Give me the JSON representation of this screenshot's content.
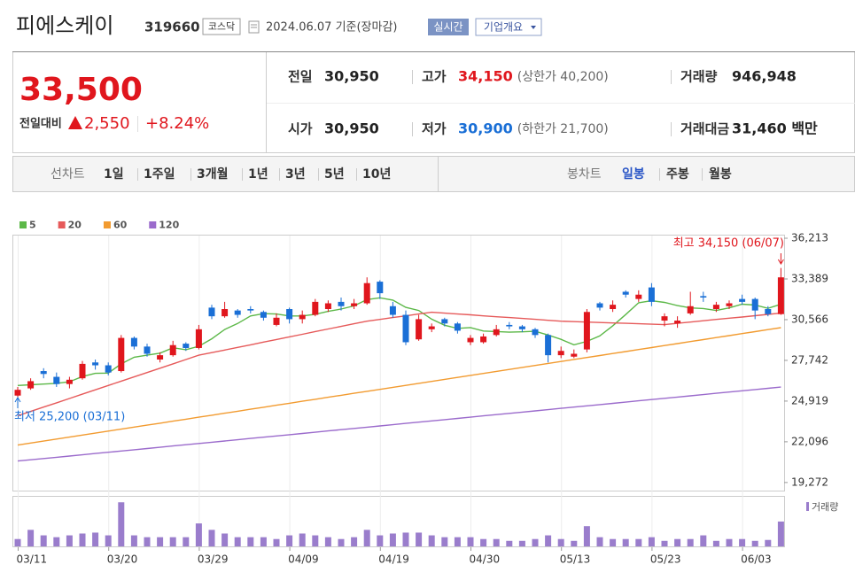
{
  "header": {
    "title": "피에스케이",
    "code": "319660",
    "market": "코스닥",
    "date": "2024.06.07 기준(장마감)",
    "realtime": "실시간",
    "overview": "기업개요"
  },
  "summary": {
    "price": "33,500",
    "change_label": "전일대비",
    "change": "2,550",
    "rate": "+8.24%",
    "stats": [
      {
        "label": "전일",
        "value": "30,950"
      },
      {
        "label": "고가",
        "value": "34,150",
        "extra": "(상한가 40,200)"
      },
      {
        "label": "거래량",
        "value": "946,948"
      },
      {
        "label": "시가",
        "value": "30,950"
      },
      {
        "label": "저가",
        "value": "30,900",
        "extra": "(하한가 21,700)"
      },
      {
        "label": "거래대금",
        "value": "31,460 백만"
      }
    ]
  },
  "periods": {
    "line_label": "선차트",
    "line_options": [
      "1일",
      "1주일",
      "3개월",
      "1년",
      "3년",
      "5년",
      "10년"
    ],
    "candle_label": "봉차트",
    "candle_options": [
      "일봉",
      "주봉",
      "월봉"
    ]
  },
  "chart_data": {
    "type": "candlestick",
    "categories": [
      "03/11",
      null,
      null,
      null,
      null,
      null,
      null,
      "03/20",
      null,
      null,
      null,
      null,
      null,
      null,
      "03/29",
      null,
      null,
      null,
      null,
      null,
      null,
      "04/09",
      null,
      null,
      null,
      null,
      null,
      null,
      "04/19",
      null,
      null,
      null,
      null,
      null,
      null,
      "04/30",
      null,
      null,
      null,
      null,
      null,
      null,
      "05/13",
      null,
      null,
      null,
      null,
      null,
      null,
      "05/23",
      null,
      null,
      null,
      null,
      null,
      null,
      "06/03",
      null,
      null,
      null
    ],
    "open": [
      25300,
      25800,
      27000,
      26600,
      26100,
      26500,
      27600,
      27400,
      27000,
      29300,
      28700,
      27800,
      28100,
      28900,
      28600,
      31400,
      30800,
      31200,
      31300,
      31100,
      30200,
      31300,
      30600,
      30900,
      31300,
      31800,
      31500,
      31700,
      33200,
      31500,
      30900,
      29200,
      29900,
      30600,
      30300,
      29000,
      29000,
      29500,
      30200,
      30100,
      29900,
      29500,
      28100,
      28000,
      28500,
      31700,
      31300,
      32500,
      32000,
      32800,
      30500,
      30300,
      31000,
      32200,
      31300,
      31500,
      32000,
      32000,
      31300,
      30950
    ],
    "high": [
      25900,
      26500,
      27200,
      26900,
      26600,
      27700,
      27800,
      27600,
      29500,
      29400,
      28900,
      28300,
      29100,
      29000,
      30200,
      31600,
      31800,
      31300,
      31500,
      31200,
      31000,
      31400,
      31200,
      32000,
      31900,
      32100,
      32000,
      33500,
      33300,
      31800,
      31200,
      30900,
      30300,
      30700,
      30400,
      29500,
      29600,
      30200,
      30400,
      30200,
      30000,
      29600,
      28700,
      28500,
      31300,
      31800,
      31900,
      32600,
      32600,
      33100,
      31000,
      30800,
      32500,
      32500,
      31800,
      31900,
      32300,
      32100,
      31500,
      34150
    ],
    "low": [
      25200,
      25700,
      26500,
      25900,
      25800,
      26400,
      27100,
      26700,
      26900,
      28500,
      28000,
      27600,
      28000,
      28400,
      28500,
      30600,
      30700,
      30700,
      31000,
      30500,
      30100,
      30300,
      30300,
      30800,
      31100,
      31200,
      31300,
      31600,
      32000,
      30700,
      28800,
      29100,
      29700,
      30100,
      29600,
      28800,
      28900,
      29400,
      29900,
      29700,
      29300,
      27600,
      27900,
      27900,
      28300,
      31200,
      31100,
      32100,
      31800,
      31500,
      30100,
      30000,
      30900,
      31800,
      31100,
      31300,
      31600,
      30600,
      30800,
      30900
    ],
    "close": [
      25700,
      26300,
      26800,
      26100,
      26400,
      27500,
      27400,
      26900,
      29300,
      28700,
      28200,
      28100,
      28800,
      28600,
      29900,
      30800,
      31300,
      30900,
      31200,
      30700,
      30700,
      30600,
      30900,
      31800,
      31700,
      31500,
      31700,
      33100,
      32400,
      30900,
      29000,
      30600,
      30100,
      30300,
      29800,
      29300,
      29400,
      29900,
      30100,
      29900,
      29500,
      28100,
      28400,
      28200,
      31100,
      31400,
      31600,
      32300,
      32300,
      31800,
      30800,
      30500,
      31500,
      32100,
      31600,
      31700,
      31800,
      31200,
      30950,
      33500
    ],
    "up_color": "#e0161d",
    "down_color": "#1a6fd6",
    "series": [
      {
        "name": "5",
        "color": "#5cb848",
        "values": [
          26000,
          26050,
          26100,
          26150,
          26260,
          26620,
          26840,
          26860,
          27500,
          27960,
          28100,
          28240,
          28620,
          28480,
          28720,
          29240,
          29880,
          30300,
          30820,
          30980,
          30960,
          30820,
          30820,
          30940,
          31140,
          31300,
          31520,
          31960,
          32080,
          31920,
          31420,
          31200,
          30600,
          30180,
          29960,
          30020,
          29780,
          29740,
          29700,
          29720,
          29760,
          29500,
          29200,
          28820,
          29060,
          29440,
          30140,
          30920,
          31740,
          31880,
          31760,
          31540,
          31380,
          31340,
          31200,
          31380,
          31640,
          31580,
          31350,
          31630
        ]
      },
      {
        "name": "20",
        "color": "#e65a5a",
        "values": [
          23900,
          24200,
          24500,
          24800,
          25100,
          25400,
          25700,
          26000,
          26300,
          26600,
          26900,
          27200,
          27500,
          27800,
          28100,
          28280,
          28460,
          28640,
          28820,
          29010,
          29190,
          29370,
          29550,
          29740,
          29920,
          30100,
          30280,
          30460,
          30580,
          30710,
          30830,
          30960,
          31080,
          31020,
          30960,
          30900,
          30830,
          30770,
          30710,
          30650,
          30590,
          30520,
          30460,
          30430,
          30400,
          30370,
          30340,
          30310,
          30280,
          30250,
          30220,
          30310,
          30400,
          30490,
          30580,
          30670,
          30750,
          30840,
          30930,
          31020
        ]
      },
      {
        "name": "60",
        "color": "#f29b30",
        "values": [
          21870,
          22008,
          22146,
          22284,
          22422,
          22560,
          22698,
          22836,
          22974,
          23112,
          23250,
          23388,
          23526,
          23664,
          23802,
          23940,
          24078,
          24216,
          24354,
          24492,
          24630,
          24768,
          24906,
          25044,
          25182,
          25320,
          25458,
          25596,
          25734,
          25872,
          26010,
          26148,
          26286,
          26424,
          26562,
          26700,
          26838,
          26976,
          27114,
          27252,
          27390,
          27528,
          27666,
          27804,
          27942,
          28080,
          28218,
          28356,
          28494,
          28632,
          28770,
          28908,
          29046,
          29184,
          29322,
          29460,
          29598,
          29736,
          29874,
          30012
        ]
      },
      {
        "name": "120",
        "color": "#9b6bcc",
        "values": [
          20760,
          20847,
          20934,
          21021,
          21108,
          21195,
          21282,
          21369,
          21456,
          21543,
          21630,
          21717,
          21804,
          21891,
          21978,
          22065,
          22152,
          22239,
          22326,
          22413,
          22500,
          22587,
          22674,
          22761,
          22848,
          22935,
          23022,
          23109,
          23196,
          23283,
          23370,
          23457,
          23544,
          23631,
          23718,
          23805,
          23892,
          23979,
          24066,
          24153,
          24240,
          24327,
          24414,
          24501,
          24588,
          24675,
          24762,
          24849,
          24936,
          25023,
          25110,
          25197,
          25284,
          25371,
          25458,
          25545,
          25632,
          25719,
          25806,
          25893
        ]
      }
    ],
    "ylim": [
      18650,
      36460
    ],
    "yticks": [
      {
        "value": 36213,
        "label": "36,213"
      },
      {
        "value": 33389,
        "label": "33,389"
      },
      {
        "value": 30566,
        "label": "30,566"
      },
      {
        "value": 27742,
        "label": "27,742"
      },
      {
        "value": 24919,
        "label": "24,919"
      },
      {
        "value": 22096,
        "label": "22,096"
      },
      {
        "value": 19272,
        "label": "19,272"
      }
    ],
    "volume": {
      "name": "거래량",
      "color": "#9a7dcc",
      "ylim": [
        0,
        1890000
      ],
      "values": [
        280000,
        630000,
        420000,
        350000,
        420000,
        490000,
        525000,
        420000,
        1680000,
        420000,
        350000,
        350000,
        350000,
        350000,
        875000,
        630000,
        490000,
        350000,
        350000,
        350000,
        280000,
        420000,
        490000,
        420000,
        350000,
        280000,
        350000,
        630000,
        420000,
        490000,
        525000,
        525000,
        420000,
        350000,
        350000,
        350000,
        280000,
        280000,
        210000,
        210000,
        280000,
        420000,
        280000,
        210000,
        770000,
        350000,
        280000,
        280000,
        280000,
        350000,
        210000,
        280000,
        280000,
        420000,
        210000,
        280000,
        280000,
        210000,
        245000,
        946948
      ]
    },
    "annotations": [
      {
        "text": "최고 34,150 (06/07)",
        "color": "#e0161d"
      },
      {
        "text": "최저 25,200 (03/11)",
        "color": "#1a6fd6"
      }
    ]
  }
}
